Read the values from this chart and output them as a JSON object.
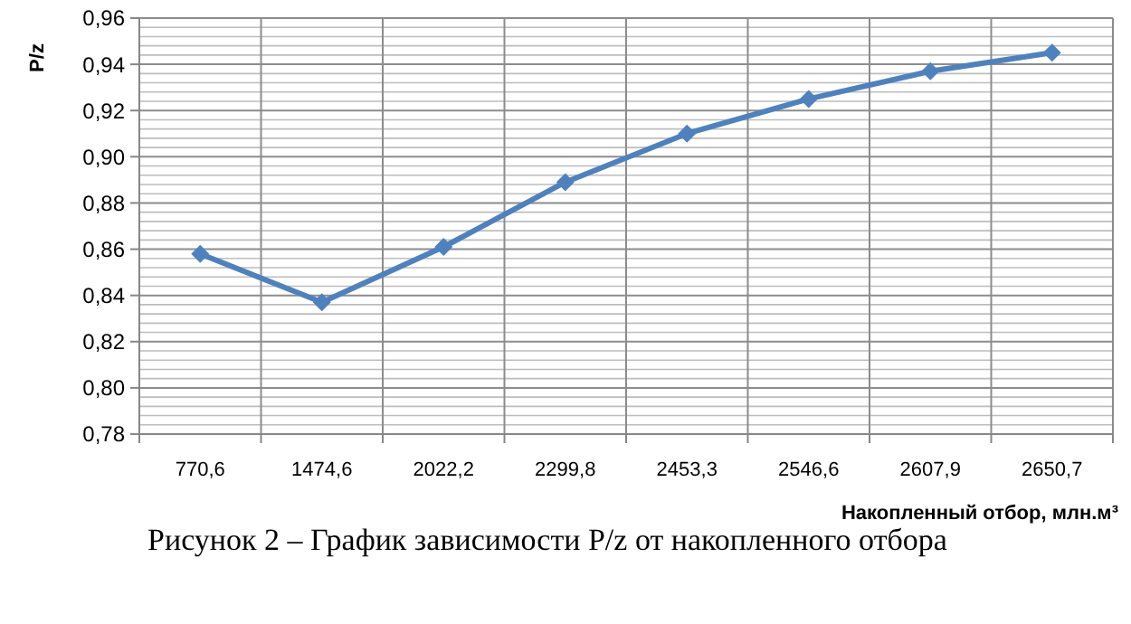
{
  "chart_data": {
    "type": "line",
    "ylabel": "P/z",
    "xlabel": "Накопленный отбор, млн.м³",
    "categories": [
      "770,6",
      "1474,6",
      "2022,2",
      "2299,8",
      "2453,3",
      "2546,6",
      "2607,9",
      "2650,7"
    ],
    "series": [
      {
        "color": "#4f81bd",
        "values": [
          0.858,
          0.837,
          0.861,
          0.889,
          0.91,
          0.925,
          0.937,
          0.945
        ]
      }
    ],
    "ylim": [
      0.78,
      0.96
    ],
    "yticks": [
      {
        "value": 0.78,
        "label": "0,78"
      },
      {
        "value": 0.8,
        "label": "0,80"
      },
      {
        "value": 0.82,
        "label": "0,82"
      },
      {
        "value": 0.84,
        "label": "0,84"
      },
      {
        "value": 0.86,
        "label": "0,86"
      },
      {
        "value": 0.88,
        "label": "0,88"
      },
      {
        "value": 0.9,
        "label": "0,90"
      },
      {
        "value": 0.92,
        "label": "0,92"
      },
      {
        "value": 0.94,
        "label": "0,94"
      },
      {
        "value": 0.96,
        "label": "0,96"
      }
    ],
    "grid": true,
    "marker": "diamond",
    "line_style": "solid",
    "annotations": [
      "Рисунок 2 – График зависимости P/z от накопленного отбора"
    ]
  }
}
